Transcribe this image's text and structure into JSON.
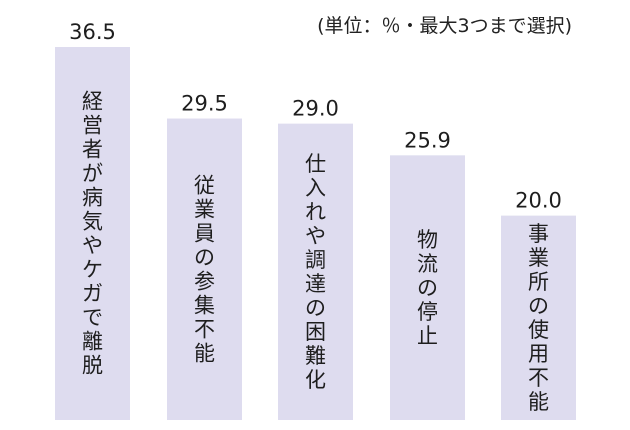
{
  "unit_note": "(単位：％・最大3つまで選択)",
  "colors": {
    "bar": "#dedcef",
    "text": "#1e1e1e"
  },
  "chart_data": {
    "type": "bar",
    "categories": [
      "経営者が病気やケガで離脱",
      "従業員の参集不能",
      "仕入れや調達の困難化",
      "物流の停止",
      "事業所の使用不能"
    ],
    "values": [
      36.5,
      29.5,
      29.0,
      25.9,
      20.0
    ],
    "value_labels": [
      "36.5",
      "29.5",
      "29.0",
      "25.9",
      "20.0"
    ],
    "title": "",
    "xlabel": "",
    "ylabel": "",
    "ylim": [
      0,
      36.5
    ],
    "grid": false,
    "legend": "none",
    "category_label_orientation": "vertical"
  }
}
